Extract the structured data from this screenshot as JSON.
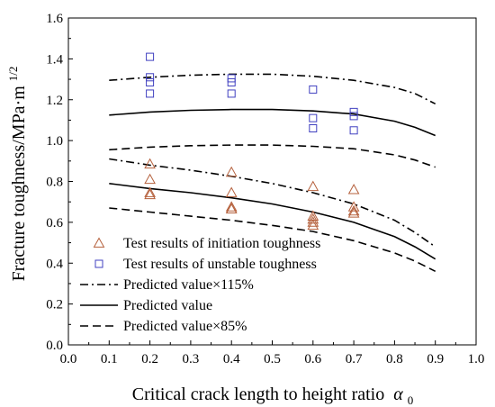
{
  "chart_data": {
    "type": "scatter",
    "xlabel": "Critical crack length to height ratio",
    "xlabel_symbol": "α",
    "xlabel_subscript": "0",
    "ylabel": "Fracture toughness/MPa·m",
    "ylabel_superscript": "1/2",
    "xlim": [
      0.0,
      1.0
    ],
    "ylim": [
      0.0,
      1.6
    ],
    "xticks": [
      "0.0",
      "0.1",
      "0.2",
      "0.3",
      "0.4",
      "0.5",
      "0.6",
      "0.7",
      "0.8",
      "0.9",
      "1.0"
    ],
    "yticks": [
      "0.0",
      "0.2",
      "0.4",
      "0.6",
      "0.8",
      "1.0",
      "1.2",
      "1.4",
      "1.6"
    ],
    "grid": false,
    "legend_position": "bottom-left",
    "series": [
      {
        "name": "Test results of initiation toughness",
        "kind": "scatter",
        "marker": "triangle",
        "color": "#b5603c",
        "x": [
          0.2,
          0.2,
          0.2,
          0.2,
          0.4,
          0.4,
          0.4,
          0.4,
          0.4,
          0.6,
          0.6,
          0.6,
          0.6,
          0.6,
          0.7,
          0.7,
          0.7,
          0.7
        ],
        "y": [
          0.885,
          0.81,
          0.745,
          0.735,
          0.845,
          0.745,
          0.675,
          0.665,
          0.665,
          0.775,
          0.63,
          0.615,
          0.6,
          0.585,
          0.76,
          0.675,
          0.655,
          0.645
        ]
      },
      {
        "name": "Test results of unstable toughness",
        "kind": "scatter",
        "marker": "square",
        "color": "#4040c0",
        "x": [
          0.2,
          0.2,
          0.2,
          0.2,
          0.4,
          0.4,
          0.4,
          0.6,
          0.6,
          0.6,
          0.7,
          0.7,
          0.7
        ],
        "y": [
          1.41,
          1.31,
          1.285,
          1.23,
          1.305,
          1.285,
          1.23,
          1.25,
          1.11,
          1.06,
          1.14,
          1.12,
          1.05
        ]
      },
      {
        "name": "Predicted value×115%",
        "kind": "line",
        "dash": "dashdot",
        "color": "#000000",
        "x": [
          0.1,
          0.2,
          0.3,
          0.4,
          0.5,
          0.6,
          0.7,
          0.8,
          0.85,
          0.9
        ],
        "y": [
          0.91,
          0.88,
          0.855,
          0.825,
          0.79,
          0.745,
          0.69,
          0.61,
          0.55,
          0.48
        ]
      },
      {
        "name": "Predicted value",
        "kind": "line",
        "dash": "solid",
        "color": "#000000",
        "x": [
          0.1,
          0.2,
          0.3,
          0.4,
          0.5,
          0.6,
          0.7,
          0.8,
          0.85,
          0.9
        ],
        "y": [
          0.79,
          0.765,
          0.745,
          0.72,
          0.69,
          0.65,
          0.6,
          0.53,
          0.48,
          0.42
        ]
      },
      {
        "name": "Predicted value×85%",
        "kind": "line",
        "dash": "dashed",
        "color": "#000000",
        "x": [
          0.1,
          0.2,
          0.3,
          0.4,
          0.5,
          0.6,
          0.7,
          0.8,
          0.85,
          0.9
        ],
        "y": [
          0.67,
          0.65,
          0.63,
          0.61,
          0.585,
          0.555,
          0.51,
          0.45,
          0.41,
          0.36
        ]
      },
      {
        "kind": "line",
        "dash": "dashdot",
        "color": "#000000",
        "x": [
          0.1,
          0.2,
          0.3,
          0.4,
          0.5,
          0.6,
          0.7,
          0.8,
          0.85,
          0.9
        ],
        "y": [
          1.295,
          1.31,
          1.32,
          1.325,
          1.325,
          1.315,
          1.295,
          1.26,
          1.23,
          1.18
        ]
      },
      {
        "kind": "line",
        "dash": "solid",
        "color": "#000000",
        "x": [
          0.1,
          0.2,
          0.3,
          0.4,
          0.5,
          0.6,
          0.7,
          0.8,
          0.85,
          0.9
        ],
        "y": [
          1.125,
          1.14,
          1.148,
          1.152,
          1.152,
          1.145,
          1.13,
          1.095,
          1.065,
          1.025
        ]
      },
      {
        "kind": "line",
        "dash": "dashed",
        "color": "#000000",
        "x": [
          0.1,
          0.2,
          0.3,
          0.4,
          0.5,
          0.6,
          0.7,
          0.8,
          0.85,
          0.9
        ],
        "y": [
          0.955,
          0.968,
          0.975,
          0.978,
          0.978,
          0.972,
          0.96,
          0.93,
          0.905,
          0.87
        ]
      }
    ],
    "legend": [
      {
        "label": "Test results of initiation toughness",
        "symbol": "triangle",
        "color": "#b5603c"
      },
      {
        "label": "Test results of unstable toughness",
        "symbol": "square",
        "color": "#4040c0"
      },
      {
        "label": "Predicted value×115%",
        "symbol": "dashdot",
        "color": "#000000"
      },
      {
        "label": "Predicted value",
        "symbol": "solid",
        "color": "#000000"
      },
      {
        "label": "Predicted value×85%",
        "symbol": "dashed",
        "color": "#000000"
      }
    ]
  }
}
